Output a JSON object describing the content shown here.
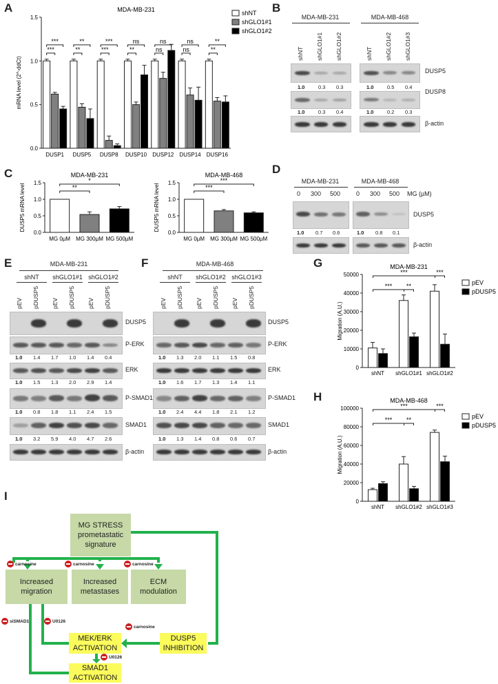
{
  "panel_letters": {
    "a": "A",
    "b": "B",
    "c": "C",
    "d": "D",
    "e": "E",
    "f": "F",
    "g": "G",
    "h": "H",
    "i": "I"
  },
  "chart_data": [
    {
      "panel": "A",
      "type": "bar",
      "title": "MDA-MB-231",
      "ylabel": "mRNA level (2^-ddCt)",
      "ylim": [
        0,
        1.5
      ],
      "yticks": [
        "0.0",
        "0.5",
        "1.0",
        "1.5"
      ],
      "categories": [
        "DUSP1",
        "DUSP5",
        "DUSP8",
        "DUSP10",
        "DUSP12",
        "DUSP14",
        "DUSP16"
      ],
      "series": [
        {
          "name": "shNT",
          "color": "#ffffff",
          "values": [
            1.0,
            1.0,
            1.0,
            1.0,
            1.0,
            1.0,
            1.0
          ],
          "err": [
            0.02,
            0.02,
            0.02,
            0.02,
            0.02,
            0.02,
            0.02
          ]
        },
        {
          "name": "shGLO1#1",
          "color": "#808080",
          "values": [
            0.62,
            0.47,
            0.09,
            0.5,
            0.8,
            0.61,
            0.54
          ],
          "err": [
            0.02,
            0.04,
            0.05,
            0.03,
            0.07,
            0.08,
            0.04
          ]
        },
        {
          "name": "shGLO1#2",
          "color": "#000000",
          "values": [
            0.45,
            0.34,
            0.03,
            0.84,
            1.12,
            0.55,
            0.53
          ],
          "err": [
            0.03,
            0.11,
            0.02,
            0.11,
            0.07,
            0.15,
            0.07
          ]
        }
      ],
      "sig_top": [
        "***",
        "**",
        "***",
        "ns",
        "ns",
        "ns",
        "**"
      ],
      "sig_bottom": [
        "***",
        "**",
        "***",
        "**",
        "ns",
        "ns",
        "**"
      ]
    },
    {
      "panel": "C1",
      "type": "bar",
      "title": "MDA-MB-231",
      "ylabel": "DUSP5 mRNA level",
      "ylim": [
        0,
        1.5
      ],
      "yticks": [
        "0.0",
        "0.5",
        "1.0",
        "1.5"
      ],
      "categories": [
        "MG 0µM",
        "MG 300µM",
        "MG 500µM"
      ],
      "values": [
        1.0,
        0.54,
        0.71
      ],
      "err": [
        0.0,
        0.08,
        0.07
      ],
      "colors": [
        "#ffffff",
        "#808080",
        "#000000"
      ],
      "sig": [
        "**",
        "*"
      ]
    },
    {
      "panel": "C2",
      "type": "bar",
      "title": "MDA-MB-468",
      "ylabel": "DUSP5 mRNA level",
      "ylim": [
        0,
        1.5
      ],
      "yticks": [
        "0.0",
        "0.5",
        "1.0",
        "1.5"
      ],
      "categories": [
        "MG 0µM",
        "MG 300µM",
        "MG 500µM"
      ],
      "values": [
        1.0,
        0.65,
        0.59
      ],
      "err": [
        0.0,
        0.04,
        0.03
      ],
      "colors": [
        "#ffffff",
        "#808080",
        "#000000"
      ],
      "sig": [
        "***",
        "***"
      ]
    },
    {
      "panel": "G",
      "type": "bar",
      "title": "MDA-MB-231",
      "ylabel": "Migration (A.U.)",
      "ylim": [
        0,
        50000
      ],
      "yticks": [
        "0",
        "10000",
        "20000",
        "30000",
        "40000",
        "50000"
      ],
      "categories": [
        "shNT",
        "shGLO1#1",
        "shGLO1#2"
      ],
      "series": [
        {
          "name": "pEV",
          "color": "#ffffff",
          "values": [
            10500,
            36000,
            41000
          ],
          "err": [
            3000,
            3000,
            3500
          ]
        },
        {
          "name": "pDUSP5",
          "color": "#000000",
          "values": [
            7500,
            16500,
            12500
          ],
          "err": [
            2500,
            2000,
            5500
          ]
        }
      ],
      "sig": [
        "***",
        "***",
        "**",
        "***"
      ]
    },
    {
      "panel": "H",
      "type": "bar",
      "title": "MDA-MB-468",
      "ylabel": "Migration (A.U.)",
      "ylim": [
        0,
        100000
      ],
      "yticks": [
        "0",
        "20000",
        "40000",
        "60000",
        "80000",
        "100000"
      ],
      "categories": [
        "shNT",
        "shGLO1#2",
        "shGLO1#3"
      ],
      "series": [
        {
          "name": "pEV",
          "color": "#ffffff",
          "values": [
            12500,
            40000,
            74000
          ],
          "err": [
            1500,
            8000,
            2500
          ]
        },
        {
          "name": "pDUSP5",
          "color": "#000000",
          "values": [
            19000,
            13500,
            42500
          ],
          "err": [
            2000,
            2500,
            6000
          ]
        }
      ],
      "sig": [
        "***",
        "***",
        "**",
        "***"
      ]
    }
  ],
  "blot_b": {
    "group1": {
      "title": "MDA-MB-231",
      "lanes": [
        "shNT",
        "shGLO1#1",
        "shGLO1#2"
      ]
    },
    "group2": {
      "title": "MDA-MB-468",
      "lanes": [
        "shNT",
        "shGLO1#2",
        "shGLO1#3"
      ]
    },
    "rows": [
      "DUSP5",
      "DUSP8",
      "β-actin"
    ],
    "q_dusp5": [
      "1.0",
      "0.3",
      "0.3",
      "1.0",
      "0.5",
      "0.4"
    ],
    "q_dusp8": [
      "1.0",
      "0.3",
      "0.4",
      "1.0",
      "0.2",
      "0.3"
    ]
  },
  "blot_d": {
    "group1": "MDA-MB-231",
    "group2": "MDA-MB-468",
    "doses": [
      "0",
      "300",
      "500",
      "0",
      "300",
      "500",
      "MG (µM)"
    ],
    "rows": [
      "DUSP5",
      "β-actin"
    ],
    "q": [
      "1.0",
      "0.7",
      "0.6",
      "1.0",
      "0.8",
      "0.1"
    ]
  },
  "blot_e": {
    "title": "MDA-MB-231",
    "groups": [
      "shNT",
      "shGLO1#1",
      "shGLO1#2"
    ],
    "lanes": [
      "pEV",
      "pDUSP5",
      "pEV",
      "pDUSP5",
      "pEV",
      "pDUSP5"
    ],
    "rows": [
      "DUSP5",
      "P-ERK",
      "ERK",
      "P-SMAD1",
      "SMAD1",
      "β-actin"
    ],
    "q_perk": [
      "1.0",
      "1.4",
      "1.7",
      "1.0",
      "1.4",
      "0.4"
    ],
    "q_erk": [
      "1.0",
      "1.5",
      "1.3",
      "2.0",
      "2.9",
      "1.4"
    ],
    "q_psmad": [
      "1.0",
      "0.8",
      "1.8",
      "1.1",
      "2.4",
      "1.5"
    ],
    "q_smad": [
      "1.0",
      "3.2",
      "5.9",
      "4.0",
      "4.7",
      "2.6"
    ]
  },
  "blot_f": {
    "title": "MDA-MB-468",
    "groups": [
      "shNT",
      "shGLO1#2",
      "shGLO1#3"
    ],
    "lanes": [
      "pEV",
      "pDUSP5",
      "pEV",
      "pDUSP5",
      "pEV",
      "pDUSP5"
    ],
    "rows": [
      "DUSP5",
      "P-ERK",
      "ERK",
      "P-SMAD1",
      "SMAD1",
      "β-actin"
    ],
    "q_perk": [
      "1.0",
      "1.3",
      "2.0",
      "1.1",
      "1.5",
      "0.8"
    ],
    "q_erk": [
      "1.0",
      "1.6",
      "1.7",
      "1.3",
      "1.4",
      "1.1"
    ],
    "q_psmad": [
      "1.0",
      "2.4",
      "4.4",
      "1.8",
      "2.1",
      "1.2"
    ],
    "q_smad": [
      "1.0",
      "1.3",
      "1.4",
      "0.8",
      "0.6",
      "0.7"
    ]
  },
  "diagram": {
    "stress": "MG STRESS prometastatic signature",
    "migration": "Increased migration",
    "metastases": "Increased metastases",
    "ecm": "ECM modulation",
    "mek": "MEK/ERK ACTIVATION",
    "dusp5": "DUSP5 INHIBITION",
    "smad": "SMAD1 ACTIVATION",
    "inhibitors": {
      "carnosine": "carnosine",
      "sismad1": "siSMAD1",
      "u0126": "U0126"
    }
  }
}
